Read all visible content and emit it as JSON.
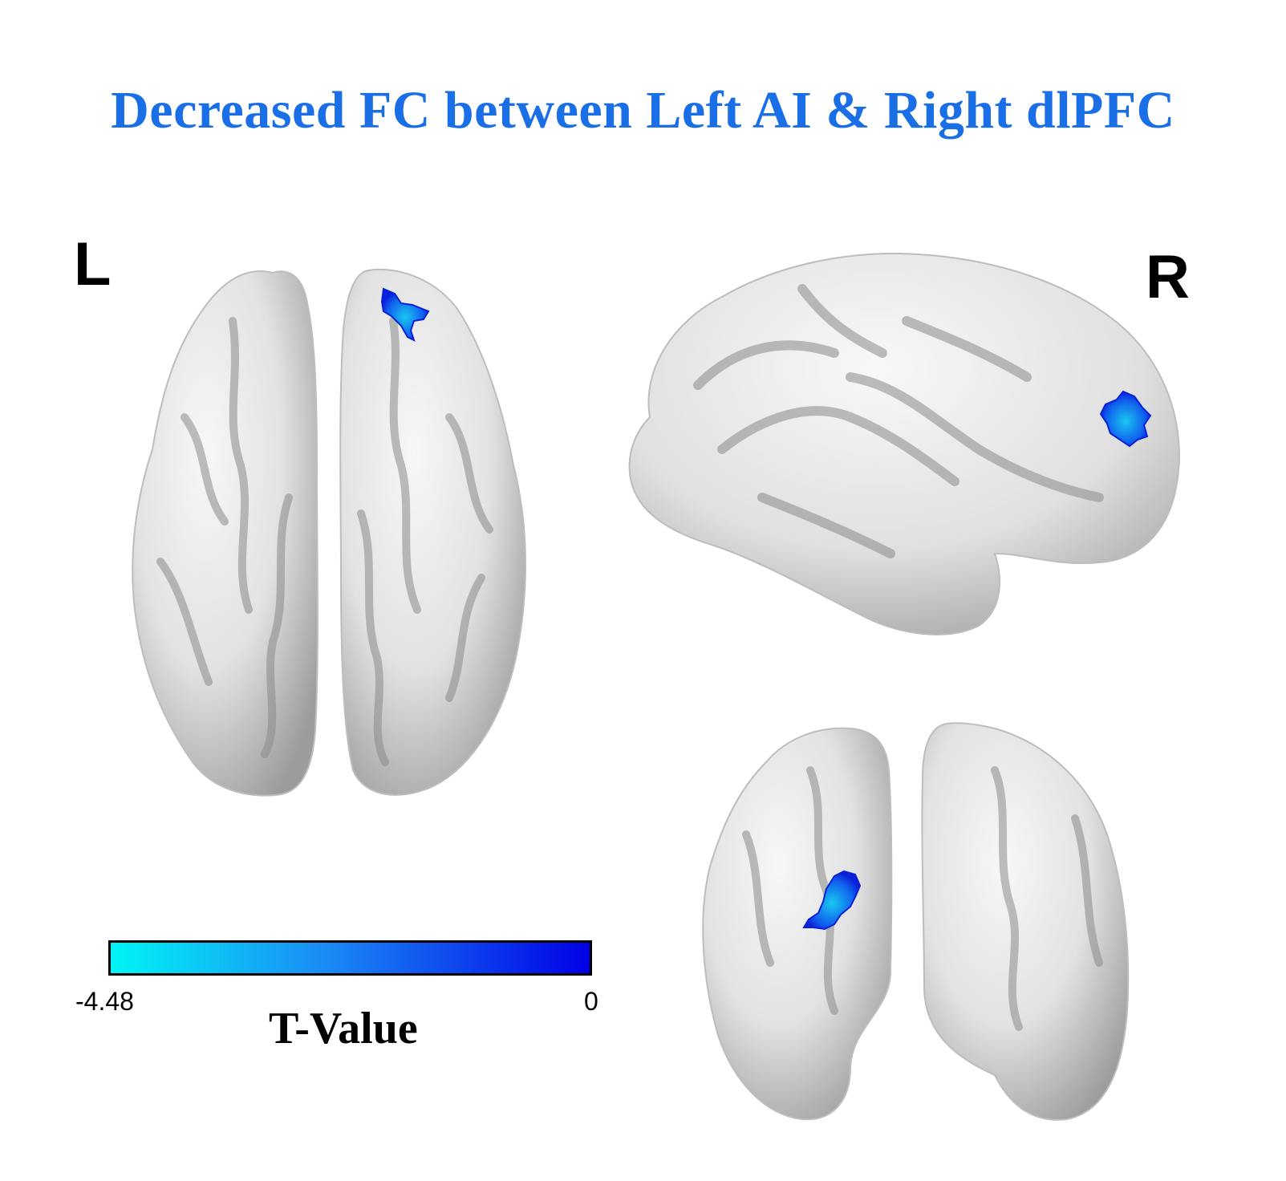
{
  "title": "Decreased FC between Left AI & Right dlPFC",
  "labels": {
    "left": "L",
    "right": "R"
  },
  "colorbar": {
    "title": "T-Value",
    "min_label": "-4.48",
    "max_label": "0",
    "color_min": "#00f5f5",
    "color_max": "#0000e6"
  },
  "colors": {
    "title": "#1a6fe6",
    "brain_surface": "#e8e8e8",
    "brain_sulcus": "#8a8a8a",
    "cluster_dark": "#0a1fd8",
    "cluster_light": "#19c8f0"
  }
}
